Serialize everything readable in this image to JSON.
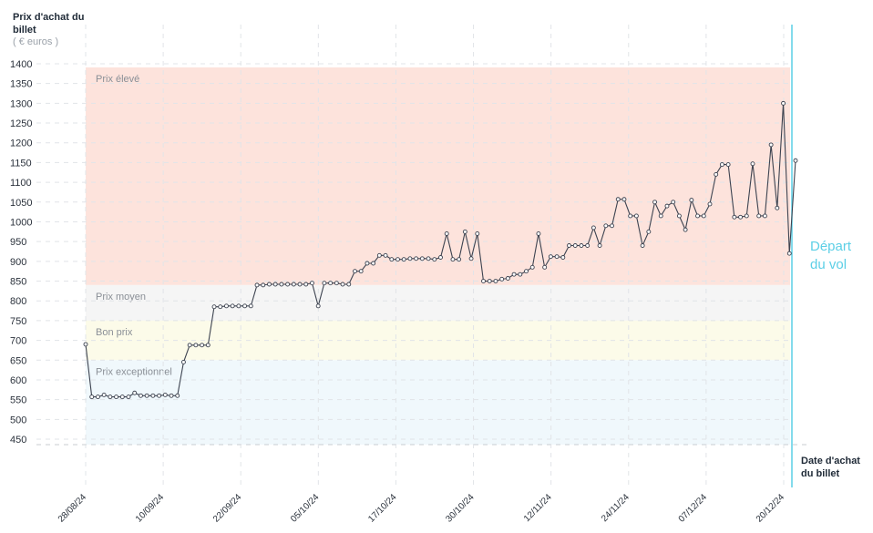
{
  "chart_data": {
    "type": "line",
    "ylabel": "Prix d'achat du billet",
    "yunit": "( € euros )",
    "xlabel": "Date d'achat du billet",
    "annotation": "Départ du vol",
    "ylim": [
      400,
      1400
    ],
    "yticks": [
      450,
      500,
      550,
      600,
      650,
      700,
      750,
      800,
      850,
      900,
      950,
      1000,
      1050,
      1100,
      1150,
      1200,
      1250,
      1300,
      1350,
      1400
    ],
    "xticks": [
      "28/08/24",
      "10/09/24",
      "22/09/24",
      "05/10/24",
      "17/10/24",
      "30/10/24",
      "12/11/24",
      "24/11/24",
      "07/12/24",
      "20/12/24"
    ],
    "grid": true,
    "bands": [
      {
        "label": "Prix élevé",
        "from": 840,
        "to": 1400,
        "color": "#fde3dc"
      },
      {
        "label": "Prix moyen",
        "from": 750,
        "to": 840,
        "color": "#f5f5f5"
      },
      {
        "label": "Bon prix",
        "from": 650,
        "to": 750,
        "color": "#fcfbe9"
      },
      {
        "label": "Prix exceptionnel",
        "from": 450,
        "to": 650,
        "color": "#f0f8fc"
      }
    ],
    "colors": {
      "line": "#3d4350",
      "marker_fill": "#ffffff",
      "depart_line": "#5ccfe6"
    },
    "series": [
      {
        "values": [
          690,
          557,
          557,
          562,
          557,
          557,
          557,
          557,
          567,
          560,
          560,
          560,
          560,
          562,
          560,
          560,
          645,
          688,
          688,
          688,
          688,
          785,
          785,
          787,
          787,
          787,
          787,
          787,
          840,
          840,
          842,
          842,
          842,
          842,
          842,
          842,
          842,
          845,
          787,
          845,
          845,
          845,
          842,
          842,
          875,
          875,
          895,
          895,
          915,
          915,
          905,
          905,
          905,
          907,
          907,
          907,
          907,
          905,
          910,
          970,
          905,
          905,
          975,
          907,
          970,
          850,
          850,
          850,
          855,
          857,
          867,
          867,
          875,
          885,
          970,
          885,
          912,
          912,
          910,
          940,
          940,
          940,
          940,
          985,
          940,
          990,
          990,
          1057,
          1057,
          1015,
          1015,
          940,
          975,
          1050,
          1015,
          1040,
          1050,
          1015,
          980,
          1055,
          1015,
          1015,
          1045,
          1120,
          1145,
          1145,
          1012,
          1012,
          1015,
          1147,
          1015,
          1015,
          1195,
          1035,
          1300,
          920,
          1155
        ]
      }
    ]
  }
}
